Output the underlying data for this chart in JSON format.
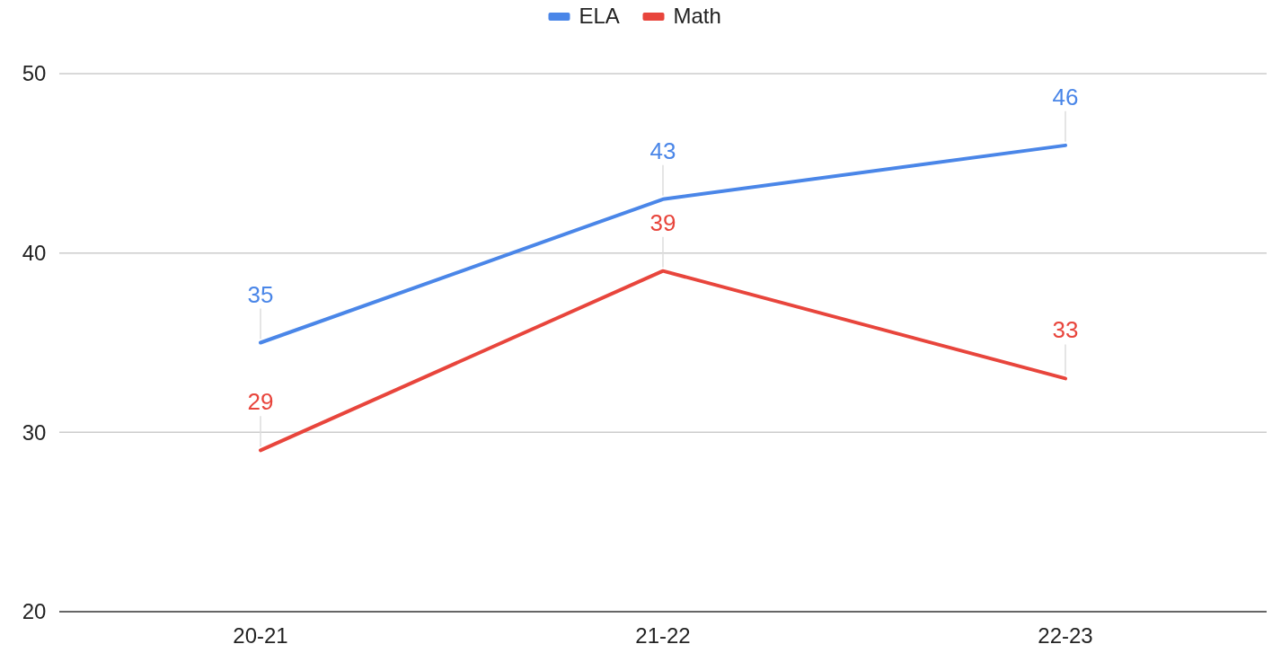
{
  "chart_data": {
    "type": "line",
    "categories": [
      "20-21",
      "21-22",
      "22-23"
    ],
    "series": [
      {
        "name": "ELA",
        "color": "#4a86e8",
        "values": [
          35,
          43,
          46
        ]
      },
      {
        "name": "Math",
        "color": "#e8453c",
        "values": [
          29,
          39,
          33
        ]
      }
    ],
    "ylim": [
      20,
      50
    ],
    "yticks": [
      20,
      30,
      40,
      50
    ],
    "grid": "y",
    "legend": "top",
    "data_labels": true,
    "marker": "none",
    "line_style": "solid"
  }
}
